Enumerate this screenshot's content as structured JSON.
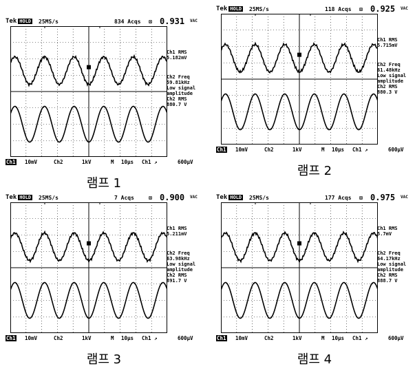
{
  "panels": [
    {
      "caption": "램프 1",
      "header": {
        "brand": "Tek",
        "mode": "HOLD",
        "rate": "25MS/s",
        "acqs": "834 Acqs",
        "value": "0.931",
        "unit": "VAC"
      },
      "side": {
        "ch1_label": "Ch1 RMS",
        "ch1_value": "5.182mV",
        "freq_label": "Ch2 Freq",
        "freq_value": "59.81kHz",
        "note1": "Low signal",
        "note2": "amplitude",
        "ch2_label": "Ch2 RMS",
        "ch2_value": "880.7 V"
      }
    },
    {
      "caption": "램프 2",
      "header": {
        "brand": "Tek",
        "mode": "HOLD",
        "rate": "25MS/s",
        "acqs": "118 Acqs",
        "value": "0.925",
        "unit": "VAC"
      },
      "side": {
        "ch1_label": "Ch1 RMS",
        "ch1_value": "5.715mV",
        "freq_label": "Ch2 Freq",
        "freq_value": "61.48kHz",
        "note1": "Low signal",
        "note2": "amplitude",
        "ch2_label": "Ch2 RMS",
        "ch2_value": "880.3 V"
      }
    },
    {
      "caption": "램프 3",
      "header": {
        "brand": "Tek",
        "mode": "HOLD",
        "rate": "25MS/s",
        "acqs": "7 Acqs",
        "value": "0.900",
        "unit": "VAC"
      },
      "side": {
        "ch1_label": "Ch1 RMS",
        "ch1_value": "5.211mV",
        "freq_label": "Ch2 Freq",
        "freq_value": "63.98kHz",
        "note1": "Low signal",
        "note2": "amplitude",
        "ch2_label": "Ch2 RMS",
        "ch2_value": "891.7 V"
      }
    },
    {
      "caption": "램프 4",
      "header": {
        "brand": "Tek",
        "mode": "HOLD",
        "rate": "25MS/s",
        "acqs": "177 Acqs",
        "value": "0.975",
        "unit": "VAC"
      },
      "side": {
        "ch1_label": "Ch1 RMS",
        "ch1_value": "5.7mV",
        "freq_label": "Ch2 Freq",
        "freq_value": "64.17kHz",
        "note1": "Low signal",
        "note2": "amplitude",
        "ch2_label": "Ch2 RMS",
        "ch2_value": "888.7 V"
      }
    }
  ],
  "footer": {
    "ch1": "Ch1",
    "ch1_scale": "10mV",
    "ch2": "Ch2",
    "ch2_scale": "1kV",
    "m": "M",
    "time": "10µs",
    "trig": "Ch1 ↗",
    "trig_level": "600µV"
  },
  "markers": {
    "ch1": "1",
    "ch2": "2"
  }
}
